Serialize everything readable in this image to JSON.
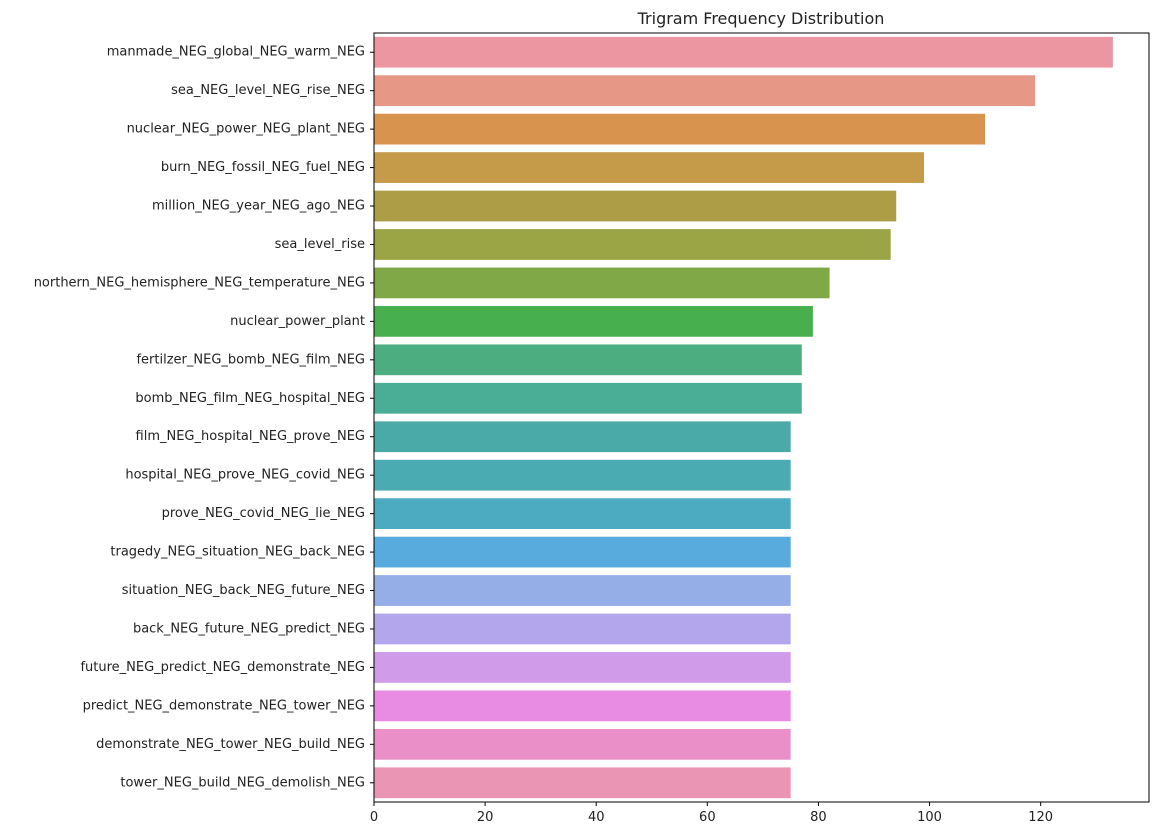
{
  "chart_data": {
    "type": "bar",
    "orientation": "horizontal",
    "title": "Trigram Frequency Distribution",
    "xlabel": "",
    "ylabel": "",
    "xlim": [
      0,
      139.5
    ],
    "xticks": [
      0,
      20,
      40,
      60,
      80,
      100,
      120
    ],
    "grid": false,
    "categories": [
      "manmade_NEG_global_NEG_warm_NEG",
      "sea_NEG_level_NEG_rise_NEG",
      "nuclear_NEG_power_NEG_plant_NEG",
      "burn_NEG_fossil_NEG_fuel_NEG",
      "million_NEG_year_NEG_ago_NEG",
      "sea_level_rise",
      "northern_NEG_hemisphere_NEG_temperature_NEG",
      "nuclear_power_plant",
      "fertilzer_NEG_bomb_NEG_film_NEG",
      "bomb_NEG_film_NEG_hospital_NEG",
      "film_NEG_hospital_NEG_prove_NEG",
      "hospital_NEG_prove_NEG_covid_NEG",
      "prove_NEG_covid_NEG_lie_NEG",
      "tragedy_NEG_situation_NEG_back_NEG",
      "situation_NEG_back_NEG_future_NEG",
      "back_NEG_future_NEG_predict_NEG",
      "future_NEG_predict_NEG_demonstrate_NEG",
      "predict_NEG_demonstrate_NEG_tower_NEG",
      "demonstrate_NEG_tower_NEG_build_NEG",
      "tower_NEG_build_NEG_demolish_NEG"
    ],
    "values": [
      133,
      119,
      110,
      99,
      94,
      93,
      82,
      79,
      77,
      77,
      75,
      75,
      75,
      75,
      75,
      75,
      75,
      75,
      75,
      75
    ],
    "colors": [
      "#ec96a2",
      "#e79785",
      "#d8944e",
      "#c59b4a",
      "#ad9d46",
      "#9ba546",
      "#80a846",
      "#48af4e",
      "#4cae80",
      "#4aae96",
      "#4aaaa7",
      "#4aabb3",
      "#4cabc0",
      "#57abdd",
      "#95aee8",
      "#b4a6ec",
      "#d09be8",
      "#e78be3",
      "#ea8fc7",
      "#ea95b4"
    ]
  }
}
